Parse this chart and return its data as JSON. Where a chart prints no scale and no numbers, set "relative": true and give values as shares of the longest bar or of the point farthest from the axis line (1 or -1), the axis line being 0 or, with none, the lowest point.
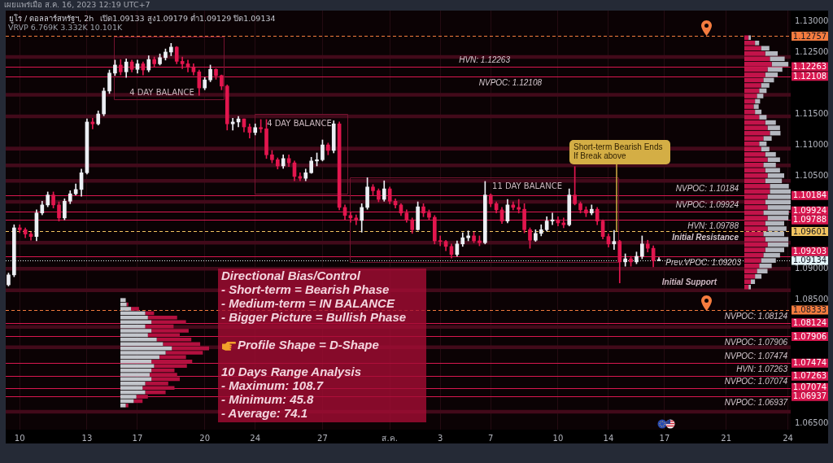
{
  "chart_data": [
    {
      "type": "candlestick",
      "title": "ยูโร / ดอลลาร์สหรัฐฯ, 2h",
      "subtitle": "เปิด1.09133 สูง1.09179 ต่ำ1.09129 ปิด1.09134",
      "annotations": [
        "เผยแพร่เมื่อ ส.ค. 16, 2023 12:19 UTC+7",
        "VRVP 6.769K 3.332K 10.101K",
        "4 DAY BALANCE",
        "4 DAY BALANCE",
        "11 DAY BALANCE",
        {
          "text": "Short-term Bearish Ends\nIf Break above",
          "y": 1.09601
        },
        "Initial Support",
        "Directional Bias/Control\n- Short-term = Bearish Phase\n- Medium-term = IN BALANCE\n- Bigger Picture = Bullish Phase\n\nProfile Shape = D-Shape\n\n10 Days Range Analysis\n- Maximum: 108.7\n- Minimum: 45.8\n- Average: 74.1"
      ],
      "categories": [
        null,
        null,
        "10",
        null,
        null,
        null,
        null,
        null,
        null,
        null,
        null,
        null,
        null,
        null,
        "13",
        null,
        null,
        null,
        null,
        null,
        null,
        null,
        null,
        "17",
        null,
        null,
        null,
        null,
        null,
        null,
        null,
        null,
        null,
        null,
        null,
        "20",
        null,
        null,
        null,
        null,
        null,
        null,
        null,
        null,
        "24",
        null,
        null,
        null,
        null,
        null,
        null,
        null,
        null,
        null,
        null,
        null,
        "27",
        null,
        null,
        null,
        null,
        null,
        null,
        null,
        null,
        null,
        null,
        null,
        "ส.ค.",
        null,
        null,
        null,
        null,
        null,
        null,
        null,
        null,
        "3",
        null,
        null,
        null,
        null,
        null,
        null,
        null,
        null,
        "7",
        null,
        null,
        null,
        null,
        null,
        null,
        null,
        null,
        null,
        null,
        null,
        "10",
        null,
        null,
        null,
        null,
        null,
        null,
        null,
        null,
        "14",
        null,
        null,
        null,
        null,
        null,
        null,
        null,
        null,
        null,
        "17",
        null,
        null,
        null,
        null,
        null,
        null,
        null,
        null,
        null,
        null,
        "21",
        null,
        null,
        null,
        null,
        null,
        null,
        null,
        null,
        null,
        null,
        "24"
      ],
      "ohlc": [
        [
          1.0874,
          1.0893,
          1.0872,
          1.089
        ],
        [
          1.089,
          1.0971,
          1.0887,
          1.0966
        ],
        [
          1.0966,
          1.0971,
          1.0958,
          1.0963
        ],
        [
          1.0963,
          1.0966,
          1.095,
          1.0956
        ],
        [
          1.0956,
          1.0959,
          1.0946,
          1.0952
        ],
        [
          1.0952,
          1.0995,
          1.0945,
          1.099
        ],
        [
          1.099,
          1.1009,
          1.0987,
          1.1003
        ],
        [
          1.1003,
          1.1024,
          1.1,
          1.1019
        ],
        [
          1.1019,
          1.1024,
          1.0998,
          1.1003
        ],
        [
          1.1003,
          1.1008,
          1.0977,
          1.0982
        ],
        [
          1.0982,
          1.1013,
          1.0979,
          1.1009
        ],
        [
          1.1009,
          1.1026,
          1.1005,
          1.1021
        ],
        [
          1.1021,
          1.1037,
          1.1019,
          1.1028
        ],
        [
          1.1028,
          1.1061,
          1.1017,
          1.1055
        ],
        [
          1.1055,
          1.1142,
          1.1053,
          1.1137
        ],
        [
          1.1137,
          1.1143,
          1.1126,
          1.1134
        ],
        [
          1.1134,
          1.1155,
          1.1132,
          1.115
        ],
        [
          1.115,
          1.1192,
          1.1147,
          1.1187
        ],
        [
          1.1187,
          1.1221,
          1.1183,
          1.1216
        ],
        [
          1.1216,
          1.1237,
          1.1212,
          1.1229
        ],
        [
          1.1229,
          1.1238,
          1.1213,
          1.1218
        ],
        [
          1.1218,
          1.1239,
          1.1209,
          1.1234
        ],
        [
          1.1234,
          1.1237,
          1.1218,
          1.1222
        ],
        [
          1.1222,
          1.1237,
          1.1216,
          1.1231
        ],
        [
          1.1231,
          1.1234,
          1.1213,
          1.1221
        ],
        [
          1.1221,
          1.1244,
          1.1218,
          1.1238
        ],
        [
          1.1238,
          1.1242,
          1.1226,
          1.1231
        ],
        [
          1.1231,
          1.1247,
          1.1229,
          1.1241
        ],
        [
          1.1241,
          1.1255,
          1.1237,
          1.125
        ],
        [
          1.125,
          1.1264,
          1.1244,
          1.1258
        ],
        [
          1.1258,
          1.1259,
          1.1231,
          1.1235
        ],
        [
          1.1235,
          1.1242,
          1.1223,
          1.1231
        ],
        [
          1.1231,
          1.1237,
          1.1218,
          1.1226
        ],
        [
          1.1226,
          1.1231,
          1.1213,
          1.1218
        ],
        [
          1.1218,
          1.1221,
          1.118,
          1.1192
        ],
        [
          1.1192,
          1.1209,
          1.1189,
          1.1205
        ],
        [
          1.1205,
          1.1229,
          1.1202,
          1.1222
        ],
        [
          1.1222,
          1.1223,
          1.1206,
          1.1212
        ],
        [
          1.1212,
          1.1213,
          1.1189,
          1.1195
        ],
        [
          1.1195,
          1.1197,
          1.1124,
          1.1134
        ],
        [
          1.1134,
          1.1143,
          1.1124,
          1.1137
        ],
        [
          1.1137,
          1.1146,
          1.1129,
          1.1142
        ],
        [
          1.1142,
          1.1142,
          1.1121,
          1.1129
        ],
        [
          1.1129,
          1.1134,
          1.1111,
          1.112
        ],
        [
          1.112,
          1.1134,
          1.1116,
          1.1128
        ],
        [
          1.1128,
          1.1141,
          1.112,
          1.1126
        ],
        [
          1.1126,
          1.1141,
          1.1078,
          1.1084
        ],
        [
          1.1084,
          1.1091,
          1.1071,
          1.1076
        ],
        [
          1.1076,
          1.1079,
          1.1061,
          1.1066
        ],
        [
          1.1066,
          1.1084,
          1.1062,
          1.1078
        ],
        [
          1.1078,
          1.1084,
          1.1065,
          1.1071
        ],
        [
          1.1071,
          1.1074,
          1.1042,
          1.1049
        ],
        [
          1.1049,
          1.1055,
          1.1042,
          1.1046
        ],
        [
          1.1046,
          1.1061,
          1.1042,
          1.1055
        ],
        [
          1.1055,
          1.108,
          1.1054,
          1.1074
        ],
        [
          1.1074,
          1.1087,
          1.1066,
          1.1076
        ],
        [
          1.1076,
          1.1108,
          1.1074,
          1.11
        ],
        [
          1.11,
          1.1103,
          1.1084,
          1.1091
        ],
        [
          1.1091,
          1.1139,
          1.1087,
          1.1134
        ],
        [
          1.1134,
          1.1137,
          1.0995,
          1.0999
        ],
        [
          1.0999,
          1.1003,
          1.0979,
          1.0986
        ],
        [
          1.0986,
          1.0992,
          1.0975,
          1.0982
        ],
        [
          1.0982,
          1.0987,
          1.0971,
          1.0978
        ],
        [
          1.0978,
          1.1005,
          1.0959,
          1.0999
        ],
        [
          1.0999,
          1.1047,
          1.0996,
          1.1032
        ],
        [
          1.1032,
          1.1036,
          1.1019,
          1.1026
        ],
        [
          1.1026,
          1.1029,
          1.1008,
          1.1012
        ],
        [
          1.1012,
          1.1042,
          1.1009,
          1.1029
        ],
        [
          1.1029,
          1.1032,
          1.1005,
          1.1009
        ],
        [
          1.1009,
          1.1013,
          1.0998,
          1.1003
        ],
        [
          1.1003,
          1.1005,
          1.0986,
          1.099
        ],
        [
          1.099,
          1.0995,
          1.0975,
          1.0979
        ],
        [
          1.0979,
          1.0982,
          1.0957,
          1.0963
        ],
        [
          1.0963,
          1.1008,
          1.0962,
          1.1
        ],
        [
          1.1,
          1.1005,
          1.0984,
          1.099
        ],
        [
          1.099,
          1.0995,
          1.0979,
          1.0983
        ],
        [
          1.0983,
          1.0986,
          1.094,
          1.0945
        ],
        [
          1.0945,
          1.0953,
          1.0937,
          1.0944
        ],
        [
          1.0944,
          1.0946,
          1.0929,
          1.0936
        ],
        [
          1.0936,
          1.094,
          1.0917,
          1.0923
        ],
        [
          1.0923,
          1.0945,
          1.092,
          1.094
        ],
        [
          1.094,
          1.0958,
          1.0936,
          1.095
        ],
        [
          1.095,
          1.0961,
          1.0945,
          1.0953
        ],
        [
          1.0953,
          1.0959,
          1.0942,
          1.0945
        ],
        [
          1.0945,
          1.0953,
          1.0937,
          1.0942
        ],
        [
          1.0942,
          1.1041,
          1.094,
          1.1019
        ],
        [
          1.1019,
          1.1021,
          1.1,
          1.1005
        ],
        [
          1.1005,
          1.1008,
          1.099,
          1.0995
        ],
        [
          1.0995,
          1.0999,
          1.0973,
          1.0977
        ],
        [
          1.0977,
          1.1012,
          1.0974,
          1.1003
        ],
        [
          1.1003,
          1.1008,
          1.0995,
          1.0999
        ],
        [
          1.0999,
          1.1012,
          1.099,
          1.0996
        ],
        [
          1.0996,
          1.1005,
          1.0958,
          1.0963
        ],
        [
          1.0963,
          1.0966,
          1.0933,
          1.0946
        ],
        [
          1.0946,
          1.0963,
          1.0944,
          1.0957
        ],
        [
          1.0957,
          1.0971,
          1.0953,
          1.0963
        ],
        [
          1.0963,
          1.0984,
          1.0961,
          1.0977
        ],
        [
          1.0977,
          1.099,
          1.0971,
          1.0979
        ],
        [
          1.0979,
          1.0984,
          1.0969,
          1.0974
        ],
        [
          1.0974,
          1.0982,
          1.0966,
          1.0971
        ],
        [
          1.0971,
          1.1029,
          1.0969,
          1.1019
        ],
        [
          1.1019,
          1.1065,
          1.1003,
          1.1005
        ],
        [
          1.1005,
          1.1008,
          1.099,
          1.0995
        ],
        [
          1.0995,
          1.1,
          1.0984,
          1.099
        ],
        [
          1.099,
          1.1003,
          1.0987,
          1.0996
        ],
        [
          1.0996,
          1.0999,
          1.0971,
          1.0977
        ],
        [
          1.0977,
          1.0979,
          1.0948,
          1.0952
        ],
        [
          1.0952,
          1.0956,
          1.0935,
          1.094
        ],
        [
          1.094,
          1.0962,
          1.0931,
          1.0944
        ],
        [
          1.0944,
          1.0946,
          1.0877,
          1.0911
        ],
        [
          1.0911,
          1.0924,
          1.0904,
          1.0916
        ],
        [
          1.0916,
          1.092,
          1.0904,
          1.0911
        ],
        [
          1.0911,
          1.0927,
          1.0908,
          1.092
        ],
        [
          1.092,
          1.0953,
          1.0916,
          1.094
        ],
        [
          1.094,
          1.0946,
          1.0927,
          1.0933
        ],
        [
          1.0933,
          1.0937,
          1.0903,
          1.0913
        ],
        [
          1.09133,
          1.09179,
          1.09129,
          1.09134
        ],
        null,
        null,
        null,
        null,
        null,
        null,
        null,
        null,
        null,
        null,
        null,
        null,
        null,
        null,
        null,
        null,
        null,
        null,
        null,
        null,
        null,
        null,
        null
      ],
      "ylim": [
        1.064,
        1.1317
      ],
      "yticks": [
        {
          "value": 1.065,
          "label": "1.06500"
        },
        1.06937,
        1.07074,
        1.07263,
        1.07474,
        1.07906,
        1.08124,
        1.08333,
        {
          "value": 1.085,
          "label": "1.08500"
        },
        {
          "value": 1.09,
          "label": "1.09000"
        },
        1.09134,
        1.09203,
        1.09601,
        1.09788,
        1.09924,
        1.10184,
        {
          "value": 1.105,
          "label": "1.10500"
        },
        {
          "value": 1.11,
          "label": "1.11000"
        },
        {
          "value": 1.115,
          "label": "1.11500"
        },
        1.12108,
        1.12263,
        {
          "value": 1.125,
          "label": "1.12500"
        },
        1.12757,
        {
          "value": 1.13,
          "label": "1.13000"
        }
      ],
      "grid": "x",
      "ref_lines": [
        {
          "axis": "y",
          "value": 1.12757,
          "label": null,
          "color": "#f57c3f",
          "line_style": "dashed"
        },
        {
          "axis": "y",
          "value": 1.12263,
          "label": "HVN: 1.12263",
          "color": "#d8174f"
        },
        {
          "axis": "y",
          "value": 1.12108,
          "label": "NVPOC: 1.12108",
          "color": "#d8174f"
        },
        {
          "axis": "y",
          "value": 1.10184,
          "label": "NVPOC: 1.10184",
          "color": "#d8174f"
        },
        {
          "axis": "y",
          "value": 1.09924,
          "label": "NVPOC: 1.09924",
          "color": "#d8174f"
        },
        {
          "axis": "y",
          "value": 1.09788,
          "label": "HVN: 1.09788",
          "color": "#d8174f"
        },
        {
          "axis": "y",
          "value": 1.09601,
          "label": "Initial Resistance",
          "color": "#f2c45f",
          "line_style": "dashed"
        },
        {
          "axis": "y",
          "value": 1.09203,
          "label": "Prev.VPOC: 1.09203",
          "color": "#d8174f"
        },
        {
          "axis": "y",
          "value": 1.09134,
          "label": null,
          "color": "#e3f4f8",
          "line_style": "dotted"
        },
        {
          "axis": "y",
          "value": 1.08333,
          "label": null,
          "color": "#f57c3f",
          "line_style": "dashed"
        },
        {
          "axis": "y",
          "value": 1.08124,
          "label": "NVPOC: 1.08124",
          "color": "#d8174f"
        },
        {
          "axis": "y",
          "value": 1.07906,
          "label": "NVPOC: 1.07906",
          "color": "#d8174f"
        },
        {
          "axis": "y",
          "value": 1.07474,
          "label": "NVPOC: 1.07474",
          "color": "#d8174f"
        },
        {
          "axis": "y",
          "value": 1.07263,
          "label": "HVN: 1.07263",
          "color": "#d8174f"
        },
        {
          "axis": "y",
          "value": 1.07074,
          "label": "NVPOC: 1.07074",
          "color": "#d8174f"
        },
        {
          "axis": "y",
          "value": 1.06937,
          "label": "NVPOC: 1.06937",
          "color": "#d8174f"
        }
      ],
      "bands": [
        {
          "axis": "y",
          "from": 1.1239,
          "to": 1.1245,
          "color": "#420a1a"
        },
        {
          "axis": "y",
          "from": 1.1178,
          "to": 1.1184,
          "color": "#420a1a"
        },
        {
          "axis": "y",
          "from": 1.1143,
          "to": 1.1149,
          "color": "#420a1a"
        },
        {
          "axis": "y",
          "from": 1.1091,
          "to": 1.1097,
          "color": "#420a1a"
        },
        {
          "axis": "y",
          "from": 1.1064,
          "to": 1.107,
          "color": "#420a1a"
        },
        {
          "axis": "y",
          "from": 1.1039,
          "to": 1.1045,
          "color": "#420a1a"
        },
        {
          "axis": "y",
          "from": 1.1005,
          "to": 1.1011,
          "color": "#420a1a"
        },
        {
          "axis": "y",
          "from": 1.0939,
          "to": 1.0945,
          "color": "#420a1a"
        },
        {
          "axis": "y",
          "from": 1.0897,
          "to": 1.0903,
          "color": "#420a1a"
        },
        {
          "axis": "y",
          "from": 1.0862,
          "to": 1.0868,
          "color": "#420a1a"
        },
        {
          "axis": "y",
          "from": 1.0803,
          "to": 1.0809,
          "color": "#420a1a"
        },
        {
          "axis": "y",
          "from": 1.077,
          "to": 1.0776,
          "color": "#420a1a"
        },
        {
          "axis": "y",
          "from": 1.0666,
          "to": 1.0672,
          "color": "#420a1a"
        }
      ]
    },
    {
      "type": "bar",
      "orientation": "horizontal",
      "stacked": true,
      "relative": true,
      "categories": [
        null,
        null,
        null,
        null,
        null,
        null,
        null,
        null,
        null,
        null,
        null,
        null,
        null,
        null,
        null,
        null,
        null,
        null,
        null,
        null,
        null,
        null,
        null,
        null,
        null,
        null,
        null,
        null,
        null,
        null,
        null,
        null,
        null,
        null,
        null,
        null,
        null,
        null,
        null,
        null,
        null,
        null,
        null,
        null,
        null,
        null,
        null,
        null
      ],
      "series": [
        {
          "color": "#c2134a",
          "values": [
            0.09,
            0.23,
            0.36,
            0.45,
            0.55,
            0.59,
            0.5,
            0.45,
            0.41,
            0.36,
            0.32,
            0.27,
            0.23,
            0.2,
            0.23,
            0.32,
            0.45,
            0.5,
            0.55,
            0.41,
            0.32,
            0.36,
            0.45,
            0.5,
            0.41,
            0.45,
            0.5,
            0.45,
            0.55,
            0.55,
            0.5,
            0.45,
            0.5,
            0.41,
            0.5,
            0.45,
            0.5,
            0.41,
            0.45,
            0.5,
            0.45,
            0.41,
            0.36,
            0.32,
            0.27,
            0.23,
            0.14,
            0.09
          ]
        },
        {
          "color": "#b4b7bf",
          "values": [
            0.05,
            0.09,
            0.18,
            0.27,
            0.32,
            0.36,
            0.32,
            0.27,
            0.23,
            0.18,
            0.16,
            0.14,
            0.11,
            0.11,
            0.14,
            0.16,
            0.23,
            0.27,
            0.23,
            0.18,
            0.16,
            0.18,
            0.23,
            0.27,
            0.27,
            0.32,
            0.36,
            0.36,
            0.41,
            0.45,
            0.5,
            0.55,
            0.5,
            0.55,
            0.45,
            0.41,
            0.41,
            0.45,
            0.5,
            0.45,
            0.41,
            0.36,
            0.32,
            0.27,
            0.23,
            0.14,
            0.09,
            0.05
          ]
        }
      ]
    },
    {
      "type": "bar",
      "orientation": "horizontal",
      "stacked": true,
      "relative": true,
      "categories": [
        null,
        null,
        null,
        null,
        null,
        null,
        null,
        null,
        null,
        null,
        null,
        null,
        null,
        null,
        null,
        null,
        null,
        null,
        null,
        null,
        null,
        null,
        null,
        null,
        null
      ],
      "series": [
        {
          "color": "#c3c6cc",
          "values": [
            0.06,
            0.07,
            0.12,
            0.28,
            0.31,
            0.35,
            0.28,
            0.35,
            0.31,
            0.41,
            0.48,
            0.58,
            0.51,
            0.44,
            0.35,
            0.38,
            0.35,
            0.33,
            0.35,
            0.28,
            0.25,
            0.28,
            0.18,
            0.15,
            0.06
          ]
        },
        {
          "color": "#b3103f",
          "values": [
            0,
            0.02,
            0.09,
            0.1,
            0.33,
            0.39,
            0.32,
            0.42,
            0.36,
            0.39,
            0.42,
            0.42,
            0.42,
            0.3,
            0.46,
            0.37,
            0.26,
            0.31,
            0.32,
            0.26,
            0.36,
            0.23,
            0.13,
            0.1,
            0.03
          ]
        }
      ]
    }
  ]
}
